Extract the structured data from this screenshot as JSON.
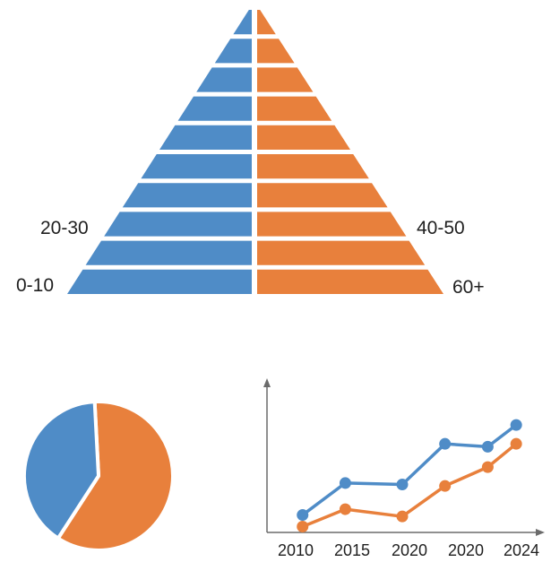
{
  "colors": {
    "blue": "#4f8cc7",
    "orange": "#e8803c",
    "axis": "#6b6b6b",
    "background": "#ffffff"
  },
  "chart_data": [
    {
      "type": "bar",
      "subtype": "population-pyramid",
      "title": "",
      "xlabel": "",
      "ylabel": "",
      "rows_bottom_to_top": 10,
      "left_labels": [
        "0-10",
        "20-30"
      ],
      "right_labels": [
        "60+",
        "40-50"
      ],
      "series": [
        {
          "color": "#4f8cc7",
          "values": [
            10,
            9,
            8,
            7,
            6,
            5,
            4,
            3,
            2,
            1
          ]
        },
        {
          "color": "#e8803c",
          "values": [
            10,
            9,
            8,
            7,
            6,
            5,
            4,
            3,
            2,
            1
          ]
        }
      ]
    },
    {
      "type": "pie",
      "title": "",
      "slices": [
        {
          "color": "#e8803c",
          "value": 60
        },
        {
          "color": "#4f8cc7",
          "value": 40
        }
      ]
    },
    {
      "type": "line",
      "title": "",
      "xlabel": "",
      "ylabel": "",
      "x_tick_labels": [
        "2010",
        "2015",
        "2020",
        "2020",
        "2024"
      ],
      "x": [
        2010,
        2013,
        2017,
        2020,
        2023,
        2025
      ],
      "xlim": [
        2007.5,
        2026.5
      ],
      "ylim": [
        0,
        100
      ],
      "grid": false,
      "series": [
        {
          "color": "#4f8cc7",
          "values": [
            12,
            34,
            33,
            61,
            59,
            74
          ]
        },
        {
          "color": "#e8803c",
          "values": [
            4,
            16,
            11,
            32,
            45,
            61
          ]
        }
      ]
    }
  ]
}
